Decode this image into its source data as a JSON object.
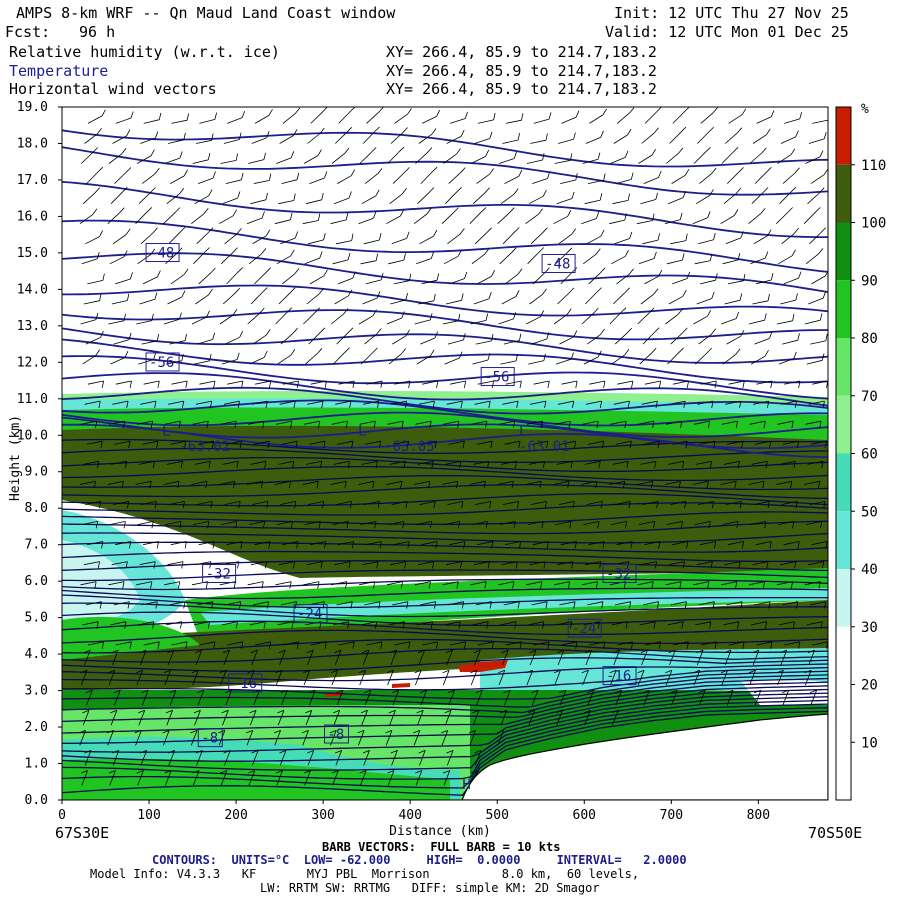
{
  "header": {
    "title": "AMPS 8-km WRF -- Qn Maud Land Coast window",
    "forecast_label": "Fcst:",
    "forecast_value": "96 h",
    "init": "Init: 12 UTC Thu 27 Nov 25",
    "valid": "Valid: 12 UTC Mon 01 Dec 25"
  },
  "fields": [
    {
      "name": "Relative humidity (w.r.t. ice)",
      "xy": "XY= 266.4, 85.9 to 214.7,183.2"
    },
    {
      "name": "Temperature",
      "xy": "XY= 266.4, 85.9 to 214.7,183.2"
    },
    {
      "name": "Horizontal wind vectors",
      "xy": "XY= 266.4, 85.9 to 214.7,183.2"
    }
  ],
  "footer": {
    "left_endpoint": "67S30E",
    "right_endpoint": "70S50E",
    "barb_note": "BARB VECTORS:  FULL BARB = 10 kts",
    "contours": "CONTOURS:  UNITS=°C  LOW= -62.000     HIGH=  0.0000     INTERVAL=   2.0000",
    "model_info": "Model Info: V4.3.3   KF       MYJ PBL  Morrison          8.0 km,  60 levels,",
    "physics": "LW: RRTM SW: RRTMG   DIFF: simple KM: 2D Smagor"
  },
  "chart_data": {
    "type": "heatmap",
    "title": "Cross-section: Relative humidity (w.r.t. ice), Temperature, Horizontal wind vectors",
    "xlabel": "Distance (km)",
    "ylabel": "Height (km)",
    "xlim": [
      0,
      880
    ],
    "ylim": [
      0,
      19
    ],
    "x_ticks": [
      "0",
      "100",
      "200",
      "300",
      "400",
      "500",
      "600",
      "700",
      "800"
    ],
    "y_ticks": [
      "0.0",
      "1.0",
      "2.0",
      "3.0",
      "4.0",
      "5.0",
      "6.0",
      "7.0",
      "8.0",
      "9.0",
      "10.0",
      "11.0",
      "12.0",
      "13.0",
      "14.0",
      "15.0",
      "16.0",
      "17.0",
      "18.0",
      "19.0"
    ],
    "colorbar": {
      "unit": "%",
      "labels": [
        "10",
        "20",
        "30",
        "40",
        "50",
        "60",
        "70",
        "80",
        "90",
        "100",
        "110"
      ],
      "colors": [
        "#ffffff",
        "#ffffff",
        "#ffffff",
        "#c7f5ef",
        "#66e6d6",
        "#47dcb8",
        "#8ef08e",
        "#66e566",
        "#22c422",
        "#108f10",
        "#3d5c0c",
        "#c81e00"
      ]
    },
    "temperature_labels": [
      {
        "text": "-48",
        "x": 100,
        "y": 14.9
      },
      {
        "text": "-48",
        "x": 555,
        "y": 14.6
      },
      {
        "text": "-56",
        "x": 100,
        "y": 11.9
      },
      {
        "text": "-56",
        "x": 485,
        "y": 11.5
      },
      {
        "text": "-63.02",
        "x": 135,
        "y": 9.6
      },
      {
        "text": "-63.05",
        "x": 370,
        "y": 9.6
      },
      {
        "text": "-63.01",
        "x": 525,
        "y": 9.6
      },
      {
        "text": "-32",
        "x": 165,
        "y": 6.1
      },
      {
        "text": "-32",
        "x": 625,
        "y": 6.1
      },
      {
        "text": "-24",
        "x": 270,
        "y": 5.0
      },
      {
        "text": "-24",
        "x": 585,
        "y": 4.6
      },
      {
        "text": "-16",
        "x": 625,
        "y": 3.3
      },
      {
        "text": "-16",
        "x": 195,
        "y": 3.1
      },
      {
        "text": "-8",
        "x": 160,
        "y": 1.6
      },
      {
        "text": "-8",
        "x": 305,
        "y": 1.7
      }
    ],
    "low_markers": [
      {
        "text": "L",
        "x": 115,
        "y": 10.0
      },
      {
        "text": "L",
        "x": 340,
        "y": 10.0
      },
      {
        "text": "L",
        "x": 525,
        "y": 10.0
      }
    ],
    "high_marker": {
      "text": "H",
      "x": 460,
      "y": 0.3
    },
    "terrain_profile": [
      [
        462,
        0
      ],
      [
        480,
        0.8
      ],
      [
        510,
        1.3
      ],
      [
        560,
        1.6
      ],
      [
        620,
        1.9
      ],
      [
        680,
        2.1
      ],
      [
        740,
        2.25
      ],
      [
        800,
        2.3
      ],
      [
        880,
        2.35
      ]
    ]
  }
}
